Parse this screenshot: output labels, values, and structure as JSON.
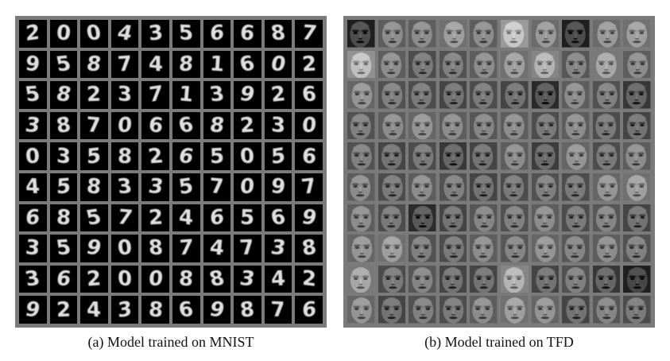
{
  "panels": [
    {
      "caption": "(a) Model trained on MNIST",
      "grid_rows": 10,
      "grid_cols": 10,
      "digits": [
        [
          "2",
          "0",
          "0",
          "4",
          "3",
          "5",
          "6",
          "6",
          "8",
          "7"
        ],
        [
          "9",
          "5",
          "8",
          "7",
          "4",
          "8",
          "1",
          "6",
          "0",
          "2"
        ],
        [
          "5",
          "8",
          "2",
          "3",
          "7",
          "1",
          "3",
          "9",
          "2",
          "6"
        ],
        [
          "3",
          "8",
          "7",
          "0",
          "6",
          "6",
          "8",
          "2",
          "3",
          "0"
        ],
        [
          "0",
          "3",
          "5",
          "8",
          "2",
          "6",
          "5",
          "0",
          "5",
          "6"
        ],
        [
          "4",
          "5",
          "8",
          "3",
          "3",
          "5",
          "7",
          "0",
          "9",
          "7"
        ],
        [
          "6",
          "8",
          "5",
          "7",
          "2",
          "4",
          "6",
          "5",
          "6",
          "9"
        ],
        [
          "3",
          "5",
          "9",
          "0",
          "8",
          "7",
          "4",
          "7",
          "3",
          "8"
        ],
        [
          "3",
          "6",
          "2",
          "0",
          "0",
          "8",
          "8",
          "3",
          "4",
          "2"
        ],
        [
          "9",
          "2",
          "4",
          "3",
          "8",
          "6",
          "9",
          "8",
          "7",
          "6"
        ]
      ]
    },
    {
      "caption": "(b) Model trained on TFD",
      "grid_rows": 10,
      "grid_cols": 10,
      "face_brightness": [
        [
          0.3,
          0.55,
          0.55,
          0.62,
          0.55,
          0.78,
          0.6,
          0.3,
          0.6,
          0.62
        ],
        [
          0.75,
          0.55,
          0.48,
          0.5,
          0.55,
          0.62,
          0.7,
          0.52,
          0.65,
          0.55
        ],
        [
          0.58,
          0.5,
          0.48,
          0.45,
          0.48,
          0.45,
          0.35,
          0.55,
          0.5,
          0.4
        ],
        [
          0.5,
          0.55,
          0.58,
          0.55,
          0.52,
          0.55,
          0.48,
          0.55,
          0.48,
          0.45
        ],
        [
          0.5,
          0.45,
          0.48,
          0.4,
          0.45,
          0.55,
          0.42,
          0.58,
          0.48,
          0.55
        ],
        [
          0.55,
          0.48,
          0.55,
          0.5,
          0.45,
          0.48,
          0.5,
          0.48,
          0.58,
          0.62
        ],
        [
          0.55,
          0.48,
          0.35,
          0.45,
          0.52,
          0.5,
          0.55,
          0.48,
          0.52,
          0.45
        ],
        [
          0.58,
          0.62,
          0.5,
          0.48,
          0.55,
          0.52,
          0.58,
          0.52,
          0.55,
          0.5
        ],
        [
          0.65,
          0.48,
          0.52,
          0.45,
          0.45,
          0.7,
          0.45,
          0.5,
          0.4,
          0.28
        ],
        [
          0.58,
          0.45,
          0.5,
          0.48,
          0.55,
          0.62,
          0.58,
          0.45,
          0.52,
          0.48
        ]
      ]
    }
  ]
}
